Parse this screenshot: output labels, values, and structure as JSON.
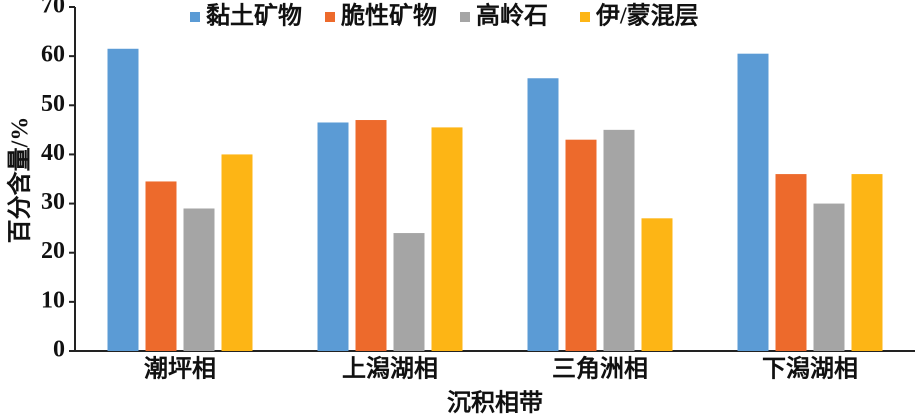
{
  "chart_data": {
    "type": "bar",
    "y_label": "百分含量/%",
    "x_label": "沉积相带",
    "categories": [
      "潮坪相",
      "上潟湖相",
      "三角洲相",
      "下潟湖相"
    ],
    "series": [
      {
        "name": "黏土矿物",
        "color": "#5b9bd5",
        "values": [
          61.5,
          46.5,
          55.5,
          60.5
        ]
      },
      {
        "name": "脆性矿物",
        "color": "#ed6a2c",
        "values": [
          34.5,
          47,
          43,
          36
        ]
      },
      {
        "name": "高岭石",
        "color": "#a5a5a5",
        "values": [
          29,
          24,
          45,
          30
        ]
      },
      {
        "name": "伊/蒙混层",
        "color": "#fdb515",
        "values": [
          40,
          45.5,
          27,
          36
        ]
      }
    ],
    "ylim": [
      0,
      70
    ],
    "yticks": [
      0,
      10,
      20,
      30,
      40,
      50,
      60,
      70
    ]
  }
}
